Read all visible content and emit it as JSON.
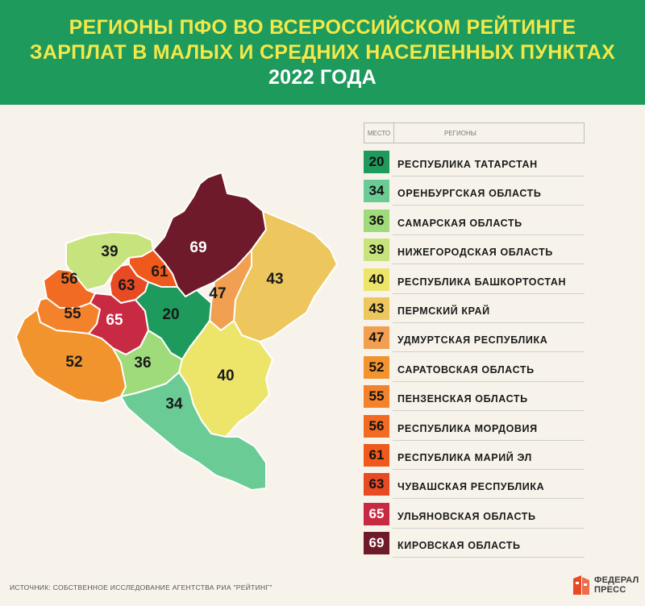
{
  "header": {
    "line1": "РЕГИОНЫ ПФО ВО ВСЕРОССИЙСКОМ РЕЙТИНГЕ",
    "line2": "ЗАРПЛАТ В МАЛЫХ И СРЕДНИХ НАСЕЛЕННЫХ ПУНКТАХ",
    "line3": "2022 ГОДА",
    "background_color": "#1d9a5c",
    "title_color": "#f3e84a"
  },
  "legend_header": {
    "rank_col": "МЕСТО",
    "region_col": "РЕГИОНЫ"
  },
  "regions": [
    {
      "rank": "20",
      "name": "РЕСПУБЛИКА ТАТАРСТАН",
      "color": "#1e9a5c",
      "light_text": false
    },
    {
      "rank": "34",
      "name": "ОРЕНБУРГСКАЯ ОБЛАСТЬ",
      "color": "#6bcb95",
      "light_text": false
    },
    {
      "rank": "36",
      "name": "САМАРСКАЯ ОБЛАСТЬ",
      "color": "#9fdb7a",
      "light_text": false
    },
    {
      "rank": "39",
      "name": "НИЖЕГОРОДСКАЯ ОБЛАСТЬ",
      "color": "#c6e37d",
      "light_text": false
    },
    {
      "rank": "40",
      "name": "РЕСПУБЛИКА БАШКОРТОСТАН",
      "color": "#ece56a",
      "light_text": false
    },
    {
      "rank": "43",
      "name": "ПЕРМСКИЙ КРАЙ",
      "color": "#edc75d",
      "light_text": false
    },
    {
      "rank": "47",
      "name": "УДМУРТСКАЯ РЕСПУБЛИКА",
      "color": "#f0a050",
      "light_text": false
    },
    {
      "rank": "52",
      "name": "САРАТОВСКАЯ ОБЛАСТЬ",
      "color": "#f2942d",
      "light_text": false
    },
    {
      "rank": "55",
      "name": "ПЕНЗЕНСКАЯ ОБЛАСТЬ",
      "color": "#f4822a",
      "light_text": false
    },
    {
      "rank": "56",
      "name": "РЕСПУБЛИКА МОРДОВИЯ",
      "color": "#f26b22",
      "light_text": false
    },
    {
      "rank": "61",
      "name": "РЕСПУБЛИКА МАРИЙ ЭЛ",
      "color": "#ef5a1c",
      "light_text": false
    },
    {
      "rank": "63",
      "name": "ЧУВАШСКАЯ РЕСПУБЛИКА",
      "color": "#e84a24",
      "light_text": false
    },
    {
      "rank": "65",
      "name": "УЛЬЯНОВСКАЯ ОБЛАСТЬ",
      "color": "#c92a43",
      "light_text": true
    },
    {
      "rank": "69",
      "name": "КИРОВСКАЯ ОБЛАСТЬ",
      "color": "#6e1a2a",
      "light_text": true
    }
  ],
  "source": "ИСТОЧНИК: СОБСТВЕННОЕ ИССЛЕДОВАНИЕ АГЕНТСТВА РИА \"РЕЙТИНГ\"",
  "logo": {
    "line1": "ФЕДЕРАЛ",
    "line2": "ПРЕСС",
    "color": "#e84a24"
  }
}
